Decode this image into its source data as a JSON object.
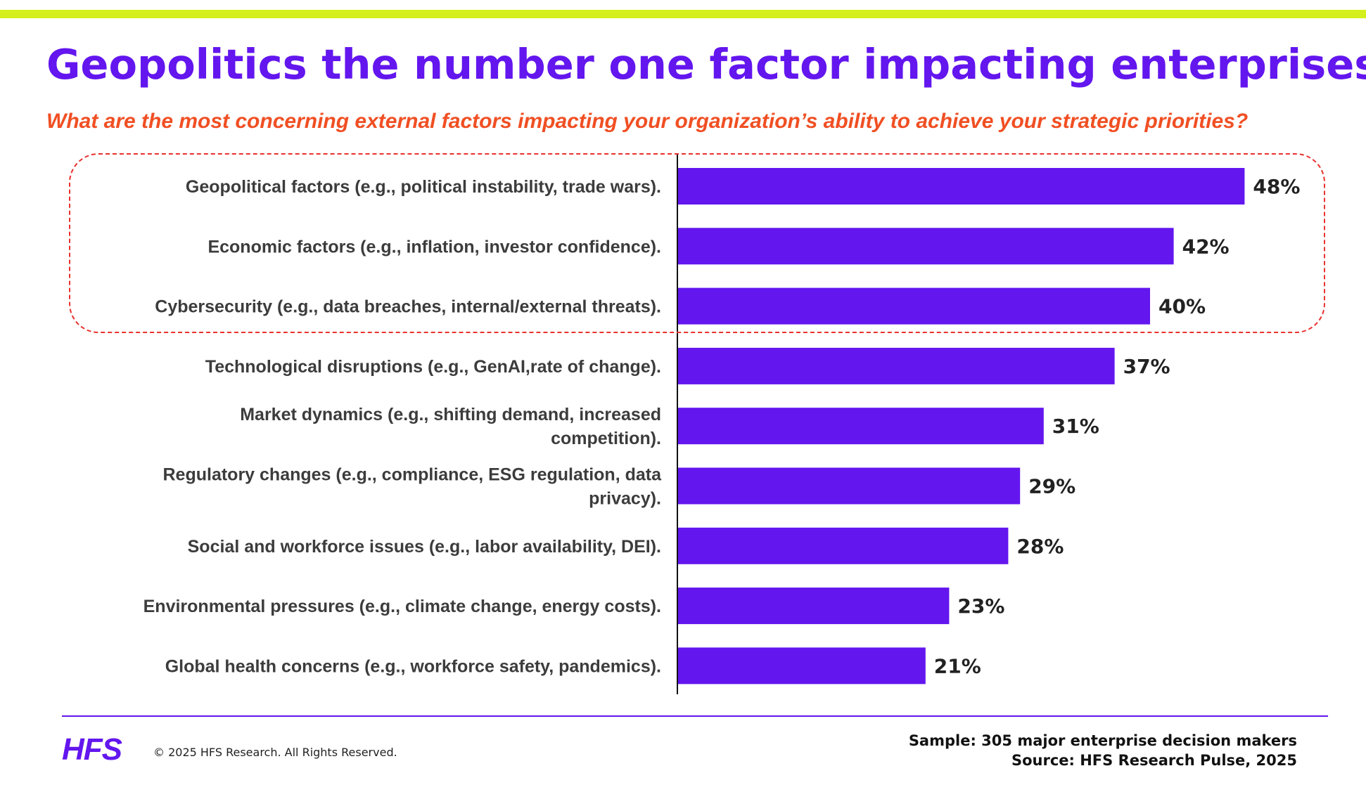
{
  "slide": {
    "title": "Geopolitics the number one factor impacting enterprises",
    "subtitle": "What are the most concerning external factors impacting your organization’s ability to achieve your strategic priorities?",
    "accent_color": "#6316ee",
    "subtitle_color": "#f04f23",
    "top_bar_color": "#d4f01c",
    "highlight_color": "#e8322e"
  },
  "chart_data": {
    "type": "bar",
    "orientation": "horizontal",
    "categories": [
      "Geopolitical factors (e.g., political instability, trade wars).",
      "Economic factors (e.g., inflation, investor confidence).",
      "Cybersecurity (e.g., data breaches, internal/external threats).",
      "Technological disruptions (e.g., GenAI,rate of change).",
      "Market dynamics (e.g., shifting demand, increased competition).",
      "Regulatory changes (e.g., compliance, ESG regulation, data privacy).",
      "Social and workforce issues (e.g., labor availability, DEI).",
      "Environmental pressures (e.g., climate change, energy costs).",
      "Global health concerns (e.g., workforce safety, pandemics)."
    ],
    "category_lines": [
      [
        "Geopolitical factors (e.g., political instability, trade wars)."
      ],
      [
        "Economic factors (e.g., inflation, investor confidence)."
      ],
      [
        "Cybersecurity (e.g., data breaches, internal/external threats)."
      ],
      [
        "Technological disruptions (e.g., GenAI,rate of change)."
      ],
      [
        "Market dynamics (e.g., shifting demand, increased",
        "competition)."
      ],
      [
        "Regulatory changes (e.g., compliance, ESG regulation, data",
        "privacy)."
      ],
      [
        "Social and workforce issues (e.g., labor availability, DEI)."
      ],
      [
        "Environmental pressures (e.g., climate change, energy costs)."
      ],
      [
        "Global health concerns (e.g., workforce safety, pandemics)."
      ]
    ],
    "values": [
      48,
      42,
      40,
      37,
      31,
      29,
      28,
      23,
      21
    ],
    "value_labels": [
      "48%",
      "42%",
      "40%",
      "37%",
      "31%",
      "29%",
      "28%",
      "23%",
      "21%"
    ],
    "unit": "%",
    "xlim": [
      0,
      50
    ],
    "bar_color": "#6316ee",
    "grid": false,
    "highlighted_top_n": 3
  },
  "footer": {
    "logo_text": "HFS",
    "copyright": "© 2025 HFS Research. All Rights Reserved.",
    "sample": "Sample: 305 major enterprise decision makers",
    "source": "Source: HFS Research Pulse, 2025"
  }
}
